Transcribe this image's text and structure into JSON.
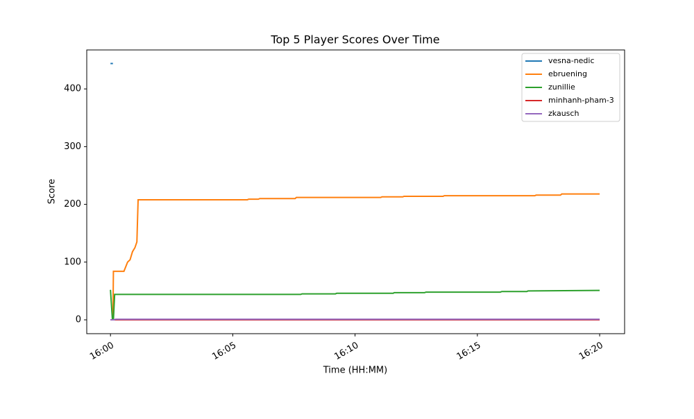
{
  "chart_data": {
    "type": "line",
    "title": "Top 5 Player Scores Over Time",
    "xlabel": "Time (HH:MM)",
    "ylabel": "Score",
    "xlim": [
      959.03,
      981.02
    ],
    "ylim": [
      -24,
      467.5
    ],
    "xticks": [
      {
        "value": 960,
        "label": "16:00"
      },
      {
        "value": 965,
        "label": "16:05"
      },
      {
        "value": 970,
        "label": "16:10"
      },
      {
        "value": 975,
        "label": "16:15"
      },
      {
        "value": 980,
        "label": "16:20"
      }
    ],
    "yticks": [
      0,
      100,
      200,
      300,
      400
    ],
    "legend": "upper right",
    "series": [
      {
        "name": "vesna-nedic",
        "color": "#1f77b4",
        "x": [
          960.0,
          960.1
        ],
        "values": [
          444,
          444
        ]
      },
      {
        "name": "ebruening",
        "color": "#ff7f0e",
        "x": [
          960.05,
          960.1,
          960.12,
          960.55,
          960.7,
          960.8,
          960.9,
          961.0,
          961.08,
          961.13,
          965.6,
          965.65,
          966.05,
          966.1,
          967.55,
          967.6,
          971.05,
          971.1,
          971.95,
          972.0,
          973.6,
          973.65,
          977.35,
          977.4,
          978.4,
          978.45,
          980.0
        ],
        "values": [
          0,
          0,
          84,
          84,
          100,
          104,
          118,
          125,
          135,
          208,
          208,
          209,
          209,
          210,
          210,
          212,
          212,
          213,
          213,
          214,
          214,
          215,
          215,
          216,
          216,
          218,
          218
        ]
      },
      {
        "name": "zunillie",
        "color": "#2ca02c",
        "x": [
          960.0,
          960.08,
          960.12,
          960.17,
          967.78,
          967.83,
          969.2,
          969.25,
          971.56,
          971.6,
          972.84,
          972.9,
          975.94,
          976.0,
          977.02,
          977.07,
          980.0
        ],
        "values": [
          52,
          0,
          0,
          44,
          44,
          45,
          45,
          46,
          46,
          47,
          47,
          48,
          48,
          49,
          49,
          50,
          51
        ]
      },
      {
        "name": "minhanh-pham-3",
        "color": "#d62728",
        "x": [
          960.0,
          980.0
        ],
        "values": [
          0,
          0
        ]
      },
      {
        "name": "zkausch",
        "color": "#9467bd",
        "x": [
          960.0,
          960.15,
          960.2,
          980.0
        ],
        "values": [
          0,
          0,
          1,
          1
        ]
      }
    ]
  }
}
